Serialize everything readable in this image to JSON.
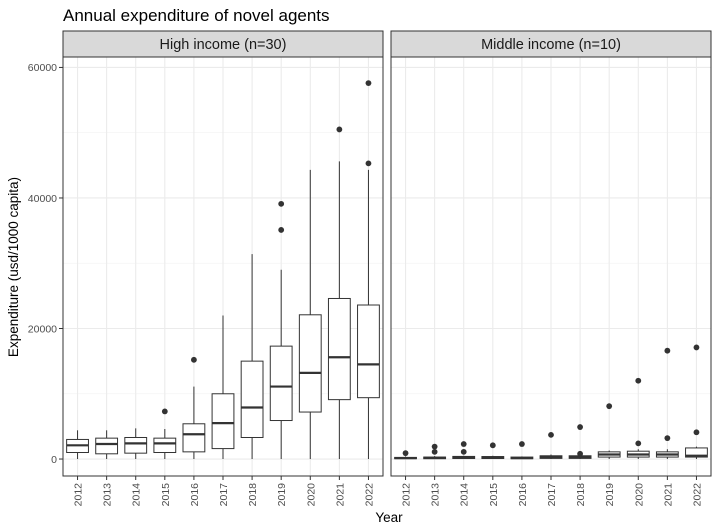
{
  "chart_data": {
    "type": "boxplot",
    "title": "Annual expenditure of novel agents",
    "xlabel": "Year",
    "ylabel": "Expenditure (usd/1000 capita)",
    "ylim": [
      -2600,
      61600
    ],
    "yticks": [
      0,
      20000,
      40000,
      60000
    ],
    "grid": true,
    "categories": [
      "2012",
      "2013",
      "2014",
      "2015",
      "2016",
      "2017",
      "2018",
      "2019",
      "2020",
      "2021",
      "2022"
    ],
    "panels": [
      {
        "name": "High income (n=30)",
        "boxes": [
          {
            "x": "2012",
            "whisker_low": 0,
            "q1": 1000,
            "median": 2100,
            "q3": 3000,
            "whisker_high": 4400,
            "outliers": []
          },
          {
            "x": "2013",
            "whisker_low": 0,
            "q1": 800,
            "median": 2300,
            "q3": 3200,
            "whisker_high": 4400,
            "outliers": []
          },
          {
            "x": "2014",
            "whisker_low": 0,
            "q1": 900,
            "median": 2400,
            "q3": 3300,
            "whisker_high": 4700,
            "outliers": []
          },
          {
            "x": "2015",
            "whisker_low": 0,
            "q1": 1000,
            "median": 2400,
            "q3": 3200,
            "whisker_high": 4600,
            "outliers": [
              7300
            ]
          },
          {
            "x": "2016",
            "whisker_low": 0,
            "q1": 1100,
            "median": 3800,
            "q3": 5400,
            "whisker_high": 11100,
            "outliers": [
              15200
            ]
          },
          {
            "x": "2017",
            "whisker_low": 0,
            "q1": 1600,
            "median": 5500,
            "q3": 10000,
            "whisker_high": 22000,
            "outliers": []
          },
          {
            "x": "2018",
            "whisker_low": 0,
            "q1": 3300,
            "median": 7900,
            "q3": 15000,
            "whisker_high": 31400,
            "outliers": []
          },
          {
            "x": "2019",
            "whisker_low": 0,
            "q1": 5900,
            "median": 11100,
            "q3": 17300,
            "whisker_high": 29000,
            "outliers": [
              35100,
              39100
            ]
          },
          {
            "x": "2020",
            "whisker_low": 0,
            "q1": 7200,
            "median": 13200,
            "q3": 22100,
            "whisker_high": 44300,
            "outliers": []
          },
          {
            "x": "2021",
            "whisker_low": 0,
            "q1": 9100,
            "median": 15600,
            "q3": 24600,
            "whisker_high": 45600,
            "outliers": [
              50500
            ]
          },
          {
            "x": "2022",
            "whisker_low": 0,
            "q1": 9400,
            "median": 14500,
            "q3": 23600,
            "whisker_high": 44300,
            "outliers": [
              45300,
              57600
            ]
          }
        ]
      },
      {
        "name": "Middle income (n=10)",
        "boxes": [
          {
            "x": "2012",
            "whisker_low": 0,
            "q1": 50,
            "median": 150,
            "q3": 250,
            "whisker_high": 400,
            "outliers": [
              900
            ]
          },
          {
            "x": "2013",
            "whisker_low": 0,
            "q1": 50,
            "median": 180,
            "q3": 300,
            "whisker_high": 450,
            "outliers": [
              1100,
              1900
            ]
          },
          {
            "x": "2014",
            "whisker_low": 0,
            "q1": 80,
            "median": 250,
            "q3": 400,
            "whisker_high": 500,
            "outliers": [
              1100,
              2300
            ]
          },
          {
            "x": "2015",
            "whisker_low": 0,
            "q1": 80,
            "median": 250,
            "q3": 380,
            "whisker_high": 500,
            "outliers": [
              2100
            ]
          },
          {
            "x": "2016",
            "whisker_low": 0,
            "q1": 50,
            "median": 150,
            "q3": 300,
            "whisker_high": 400,
            "outliers": [
              2300
            ]
          },
          {
            "x": "2017",
            "whisker_low": 0,
            "q1": 100,
            "median": 300,
            "q3": 500,
            "whisker_high": 700,
            "outliers": [
              3700
            ]
          },
          {
            "x": "2018",
            "whisker_low": 0,
            "q1": 100,
            "median": 300,
            "q3": 500,
            "whisker_high": 600,
            "outliers": [
              800,
              4900
            ]
          },
          {
            "x": "2019",
            "whisker_low": 0,
            "q1": 300,
            "median": 700,
            "q3": 1100,
            "whisker_high": 1300,
            "outliers": [
              8100
            ]
          },
          {
            "x": "2020",
            "whisker_low": 0,
            "q1": 300,
            "median": 700,
            "q3": 1200,
            "whisker_high": 1500,
            "outliers": [
              2400,
              12000
            ]
          },
          {
            "x": "2021",
            "whisker_low": 0,
            "q1": 300,
            "median": 700,
            "q3": 1100,
            "whisker_high": 1500,
            "outliers": [
              3200,
              16600
            ]
          },
          {
            "x": "2022",
            "whisker_low": 0,
            "q1": 300,
            "median": 500,
            "q3": 1700,
            "whisker_high": 1900,
            "outliers": [
              4100,
              17100
            ]
          }
        ]
      }
    ]
  }
}
